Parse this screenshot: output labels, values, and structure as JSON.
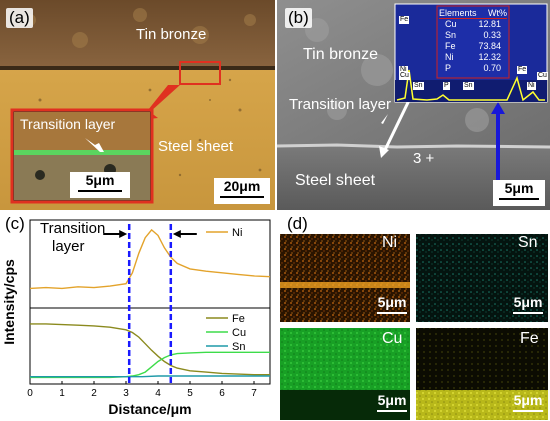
{
  "panel_a": {
    "label": "(a)",
    "top_region": "Tin bronze",
    "bottom_region": "Steel sheet",
    "inset_label": "Transition layer",
    "inset_scale": "5μm",
    "scale": "20μm"
  },
  "panel_b": {
    "label": "(b)",
    "top_region": "Tin bronze",
    "interface_label": "Transition layer",
    "bottom_region": "Steel sheet",
    "point_marker": "3 +",
    "scale": "5μm",
    "eds_table": {
      "headers": [
        "Elements",
        "Wt%"
      ],
      "rows": [
        {
          "element": "Cu",
          "value": "12.81"
        },
        {
          "element": "Sn",
          "value": "0.33"
        },
        {
          "element": "Fe",
          "value": "73.84"
        },
        {
          "element": "Ni",
          "value": "12.32"
        },
        {
          "element": "P",
          "value": "0.70"
        }
      ]
    },
    "spectrum_peaks": [
      "Fe",
      "Ni",
      "Cu",
      "Sn",
      "P",
      "Sn",
      "Fe",
      "Ni",
      "Cu"
    ]
  },
  "panel_c": {
    "label": "(c)",
    "annotation": [
      "Transition",
      "layer"
    ],
    "colors": {
      "Ni": "#e3a32b",
      "Fe": "#8b8a1e",
      "Cu": "#3ddc4a",
      "Sn": "#1f9aa8",
      "boundary": "#1a1aff"
    }
  },
  "panel_d": {
    "label": "(d)",
    "maps": [
      {
        "element": "Ni",
        "scale": "5μm"
      },
      {
        "element": "Sn",
        "scale": "5μm"
      },
      {
        "element": "Cu",
        "scale": "5μm"
      },
      {
        "element": "Fe",
        "scale": "5μm"
      }
    ]
  },
  "chart_data": {
    "type": "line",
    "xlabel": "Distance/μm",
    "ylabel": "Intensity/cps",
    "xlim": [
      0,
      7.5
    ],
    "xticks": [
      "0",
      "1",
      "2",
      "3",
      "4",
      "5",
      "6",
      "7"
    ],
    "boundaries": [
      3.1,
      4.4
    ],
    "subplots": [
      {
        "series": [
          {
            "name": "Ni",
            "x": [
              0,
              0.5,
              1,
              1.5,
              2,
              2.5,
              3,
              3.2,
              3.4,
              3.6,
              3.8,
              4.0,
              4.2,
              4.4,
              4.6,
              5,
              5.5,
              6,
              6.5,
              7,
              7.5
            ],
            "y": [
              0.2,
              0.21,
              0.2,
              0.22,
              0.21,
              0.23,
              0.26,
              0.4,
              0.65,
              0.85,
              0.95,
              0.88,
              0.72,
              0.6,
              0.52,
              0.45,
              0.42,
              0.4,
              0.38,
              0.36,
              0.35
            ]
          }
        ]
      },
      {
        "series": [
          {
            "name": "Fe",
            "x": [
              0,
              0.5,
              1,
              1.5,
              2,
              2.5,
              3,
              3.2,
              3.4,
              3.6,
              3.8,
              4.0,
              4.2,
              4.4,
              4.6,
              5,
              5.5,
              6,
              6.5,
              7,
              7.5
            ],
            "y": [
              0.85,
              0.85,
              0.84,
              0.83,
              0.82,
              0.8,
              0.76,
              0.72,
              0.65,
              0.55,
              0.45,
              0.36,
              0.28,
              0.22,
              0.18,
              0.14,
              0.12,
              0.1,
              0.09,
              0.08,
              0.08
            ]
          },
          {
            "name": "Cu",
            "x": [
              0,
              0.5,
              1,
              1.5,
              2,
              2.5,
              3,
              3.2,
              3.4,
              3.6,
              3.8,
              4.0,
              4.2,
              4.4,
              4.6,
              5,
              5.5,
              6,
              6.5,
              7,
              7.5
            ],
            "y": [
              0.04,
              0.04,
              0.04,
              0.04,
              0.04,
              0.04,
              0.05,
              0.06,
              0.08,
              0.12,
              0.2,
              0.28,
              0.34,
              0.38,
              0.4,
              0.41,
              0.42,
              0.42,
              0.42,
              0.42,
              0.42
            ]
          },
          {
            "name": "Sn",
            "x": [
              0,
              0.5,
              1,
              1.5,
              2,
              2.5,
              3,
              3.5,
              4,
              4.5,
              5,
              5.5,
              6,
              6.5,
              7,
              7.5
            ],
            "y": [
              0.05,
              0.05,
              0.05,
              0.05,
              0.05,
              0.05,
              0.05,
              0.05,
              0.06,
              0.06,
              0.06,
              0.06,
              0.06,
              0.06,
              0.06,
              0.06
            ]
          }
        ]
      }
    ]
  }
}
